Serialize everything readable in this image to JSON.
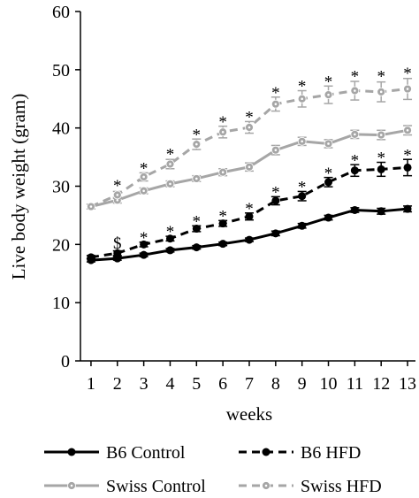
{
  "chart_data": {
    "type": "line",
    "xlabel": "weeks",
    "ylabel": "Live body weight (gram)",
    "x": [
      1,
      2,
      3,
      4,
      5,
      6,
      7,
      8,
      9,
      10,
      11,
      12,
      13
    ],
    "xlim": [
      0.6,
      13.3
    ],
    "ylim": [
      0,
      60
    ],
    "yticks": [
      0,
      10,
      20,
      30,
      40,
      50,
      60
    ],
    "grid": false,
    "legend_position": "bottom",
    "series": [
      {
        "name": "B6 Control",
        "color": "#000000",
        "dashed": false,
        "values": [
          17.3,
          17.6,
          18.2,
          19.0,
          19.5,
          20.1,
          20.8,
          21.9,
          23.2,
          24.6,
          25.9,
          25.7,
          26.1
        ],
        "errors": [
          0.3,
          0.3,
          0.3,
          0.3,
          0.3,
          0.3,
          0.3,
          0.4,
          0.4,
          0.4,
          0.4,
          0.5,
          0.5
        ]
      },
      {
        "name": "B6 HFD",
        "color": "#000000",
        "dashed": true,
        "values": [
          17.8,
          18.5,
          20.0,
          21.0,
          22.7,
          23.6,
          24.8,
          27.5,
          28.3,
          30.7,
          32.7,
          32.9,
          33.2
        ],
        "errors": [
          0.3,
          0.4,
          0.4,
          0.4,
          0.5,
          0.5,
          0.6,
          0.7,
          0.8,
          0.8,
          1.0,
          1.2,
          1.4
        ]
      },
      {
        "name": "Swiss Control",
        "color": "#a6a6a6",
        "dashed": false,
        "values": [
          26.5,
          27.6,
          29.2,
          30.4,
          31.3,
          32.4,
          33.3,
          36.2,
          37.7,
          37.3,
          38.9,
          38.8,
          39.6
        ],
        "errors": [
          0.4,
          0.5,
          0.5,
          0.5,
          0.5,
          0.6,
          0.7,
          0.8,
          0.7,
          0.7,
          0.7,
          0.8,
          0.8
        ]
      },
      {
        "name": "Swiss HFD",
        "color": "#a6a6a6",
        "dashed": true,
        "values": [
          26.5,
          28.5,
          31.6,
          33.8,
          37.2,
          39.3,
          40.1,
          44.1,
          45.0,
          45.7,
          46.4,
          46.2,
          46.7
        ],
        "errors": [
          0.4,
          0.6,
          0.7,
          0.8,
          0.9,
          1.0,
          1.0,
          1.2,
          1.4,
          1.5,
          1.6,
          1.7,
          1.8
        ]
      }
    ],
    "annotations": [
      {
        "text": "*",
        "x": 2,
        "y": 30.8
      },
      {
        "text": "*",
        "x": 3,
        "y": 33.8
      },
      {
        "text": "*",
        "x": 4,
        "y": 36.2
      },
      {
        "text": "*",
        "x": 5,
        "y": 39.6
      },
      {
        "text": "*",
        "x": 6,
        "y": 41.8
      },
      {
        "text": "*",
        "x": 7,
        "y": 42.6
      },
      {
        "text": "*",
        "x": 8,
        "y": 46.8
      },
      {
        "text": "*",
        "x": 9,
        "y": 47.9
      },
      {
        "text": "*",
        "x": 10,
        "y": 48.7
      },
      {
        "text": "*",
        "x": 11,
        "y": 49.6
      },
      {
        "text": "*",
        "x": 12,
        "y": 49.6
      },
      {
        "text": "*",
        "x": 13,
        "y": 50.1
      },
      {
        "text": "$",
        "x": 2,
        "y": 20.2
      },
      {
        "text": "*",
        "x": 3,
        "y": 21.9
      },
      {
        "text": "*",
        "x": 4,
        "y": 22.9
      },
      {
        "text": "*",
        "x": 5,
        "y": 24.7
      },
      {
        "text": "*",
        "x": 6,
        "y": 25.6
      },
      {
        "text": "*",
        "x": 7,
        "y": 26.9
      },
      {
        "text": "*",
        "x": 8,
        "y": 29.7
      },
      {
        "text": "*",
        "x": 9,
        "y": 30.6
      },
      {
        "text": "*",
        "x": 10,
        "y": 33.0
      },
      {
        "text": "*",
        "x": 11,
        "y": 35.2
      },
      {
        "text": "*",
        "x": 12,
        "y": 35.6
      },
      {
        "text": "*",
        "x": 13,
        "y": 36.1
      }
    ]
  }
}
